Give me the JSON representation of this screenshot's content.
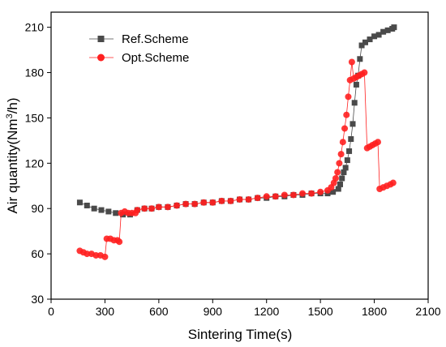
{
  "chart_data": {
    "type": "scatter",
    "title": "",
    "xlabel": "Sintering Time(s)",
    "ylabel_prefix": "Air quantity(Nm",
    "ylabel_sup": "3",
    "ylabel_suffix": "/h)",
    "xlim": [
      0,
      2100
    ],
    "ylim": [
      30,
      220
    ],
    "xticks": [
      0,
      300,
      600,
      900,
      1200,
      1500,
      1800,
      2100
    ],
    "yticks": [
      30,
      60,
      90,
      120,
      150,
      180,
      210
    ],
    "legend_position": "top-left",
    "series": [
      {
        "name": "Ref.Scheme",
        "marker": "square",
        "color": "#4a4a4a",
        "points": [
          [
            160,
            94
          ],
          [
            200,
            92
          ],
          [
            240,
            90
          ],
          [
            280,
            89
          ],
          [
            320,
            88
          ],
          [
            360,
            87
          ],
          [
            400,
            86
          ],
          [
            440,
            86
          ],
          [
            480,
            89
          ],
          [
            520,
            90
          ],
          [
            560,
            90
          ],
          [
            600,
            91
          ],
          [
            650,
            91
          ],
          [
            700,
            92
          ],
          [
            750,
            93
          ],
          [
            800,
            93
          ],
          [
            850,
            94
          ],
          [
            900,
            94
          ],
          [
            950,
            95
          ],
          [
            1000,
            95
          ],
          [
            1050,
            96
          ],
          [
            1100,
            96
          ],
          [
            1150,
            97
          ],
          [
            1200,
            97
          ],
          [
            1250,
            98
          ],
          [
            1300,
            98
          ],
          [
            1350,
            99
          ],
          [
            1400,
            99
          ],
          [
            1450,
            100
          ],
          [
            1500,
            100
          ],
          [
            1540,
            100
          ],
          [
            1570,
            101
          ],
          [
            1600,
            103
          ],
          [
            1610,
            106
          ],
          [
            1620,
            110
          ],
          [
            1630,
            114
          ],
          [
            1640,
            117
          ],
          [
            1650,
            122
          ],
          [
            1660,
            128
          ],
          [
            1670,
            136
          ],
          [
            1680,
            146
          ],
          [
            1690,
            160
          ],
          [
            1700,
            172
          ],
          [
            1710,
            178
          ],
          [
            1720,
            189
          ],
          [
            1730,
            198
          ],
          [
            1750,
            200
          ],
          [
            1775,
            202
          ],
          [
            1800,
            204
          ],
          [
            1825,
            205
          ],
          [
            1850,
            207
          ],
          [
            1875,
            208
          ],
          [
            1900,
            209
          ],
          [
            1910,
            210
          ]
        ]
      },
      {
        "name": "Opt.Scheme",
        "marker": "circle",
        "color": "#ff2020",
        "points": [
          [
            160,
            62
          ],
          [
            180,
            61
          ],
          [
            200,
            60
          ],
          [
            225,
            60
          ],
          [
            250,
            59
          ],
          [
            275,
            59
          ],
          [
            300,
            58
          ],
          [
            310,
            70
          ],
          [
            330,
            70
          ],
          [
            350,
            69
          ],
          [
            370,
            69
          ],
          [
            380,
            68
          ],
          [
            390,
            87
          ],
          [
            410,
            88
          ],
          [
            430,
            87
          ],
          [
            450,
            87
          ],
          [
            470,
            87
          ],
          [
            480,
            89
          ],
          [
            520,
            90
          ],
          [
            560,
            90
          ],
          [
            600,
            91
          ],
          [
            650,
            91
          ],
          [
            700,
            92
          ],
          [
            750,
            93
          ],
          [
            800,
            93
          ],
          [
            850,
            94
          ],
          [
            900,
            94
          ],
          [
            950,
            95
          ],
          [
            1000,
            95
          ],
          [
            1050,
            96
          ],
          [
            1100,
            96
          ],
          [
            1150,
            97
          ],
          [
            1200,
            98
          ],
          [
            1250,
            98
          ],
          [
            1300,
            99
          ],
          [
            1350,
            99
          ],
          [
            1400,
            100
          ],
          [
            1450,
            100
          ],
          [
            1500,
            101
          ],
          [
            1540,
            102
          ],
          [
            1560,
            104
          ],
          [
            1575,
            107
          ],
          [
            1585,
            110
          ],
          [
            1595,
            114
          ],
          [
            1605,
            120
          ],
          [
            1615,
            126
          ],
          [
            1625,
            134
          ],
          [
            1635,
            143
          ],
          [
            1645,
            152
          ],
          [
            1655,
            164
          ],
          [
            1665,
            175
          ],
          [
            1675,
            187
          ],
          [
            1685,
            176
          ],
          [
            1700,
            177
          ],
          [
            1715,
            178
          ],
          [
            1730,
            179
          ],
          [
            1745,
            180
          ],
          [
            1760,
            130
          ],
          [
            1775,
            131
          ],
          [
            1790,
            132
          ],
          [
            1805,
            133
          ],
          [
            1820,
            134
          ],
          [
            1830,
            103
          ],
          [
            1850,
            104
          ],
          [
            1870,
            105
          ],
          [
            1890,
            106
          ],
          [
            1905,
            107
          ]
        ]
      }
    ]
  }
}
